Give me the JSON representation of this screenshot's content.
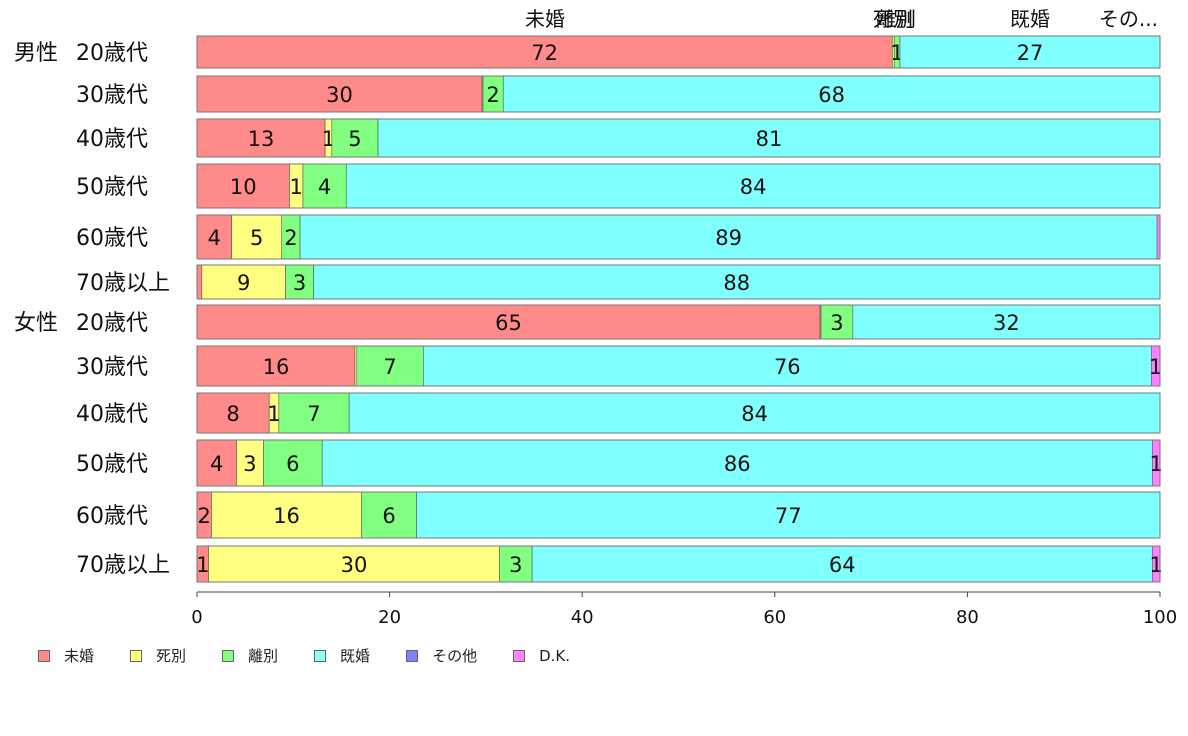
{
  "chart_data": {
    "type": "bar",
    "orientation": "horizontal",
    "stacked": true,
    "categories": [
      {
        "group": "男性",
        "label": "20歳代"
      },
      {
        "group": "",
        "label": "30歳代"
      },
      {
        "group": "",
        "label": "40歳代"
      },
      {
        "group": "",
        "label": "50歳代"
      },
      {
        "group": "",
        "label": "60歳代"
      },
      {
        "group": "",
        "label": "70歳以上"
      },
      {
        "group": "女性",
        "label": "20歳代"
      },
      {
        "group": "",
        "label": "30歳代"
      },
      {
        "group": "",
        "label": "40歳代"
      },
      {
        "group": "",
        "label": "50歳代"
      },
      {
        "group": "",
        "label": "60歳代"
      },
      {
        "group": "",
        "label": "70歳以上"
      }
    ],
    "series": [
      {
        "name": "未婚",
        "color": "#ff8a8a",
        "values": [
          72.2,
          29.6,
          13.3,
          9.6,
          3.6,
          0.5,
          64.7,
          16.4,
          7.5,
          4.1,
          1.5,
          1.2
        ],
        "labels": [
          "72",
          "30",
          "13",
          "10",
          "4",
          "",
          "65",
          "16",
          "8",
          "4",
          "2",
          "1"
        ]
      },
      {
        "name": "死別",
        "color": "#ffff80",
        "values": [
          0.2,
          0.1,
          0.7,
          1.4,
          5.2,
          8.7,
          0.1,
          0.2,
          1.0,
          2.8,
          15.6,
          30.2
        ],
        "labels": [
          "",
          "",
          "1",
          "1",
          "5",
          "9",
          "",
          "",
          "1",
          "3",
          "16",
          "30"
        ]
      },
      {
        "name": "離別",
        "color": "#80ff80",
        "values": [
          0.6,
          2.1,
          4.8,
          4.5,
          1.9,
          2.9,
          3.3,
          6.9,
          7.3,
          6.1,
          5.7,
          3.4
        ],
        "labels": [
          "1",
          "2",
          "5",
          "4",
          "2",
          "3",
          "3",
          "7",
          "7",
          "6",
          "6",
          "3"
        ]
      },
      {
        "name": "既婚",
        "color": "#80ffff",
        "values": [
          27.0,
          68.2,
          81.2,
          84.5,
          89.0,
          87.9,
          31.9,
          75.6,
          84.2,
          86.2,
          77.2,
          64.4
        ],
        "labels": [
          "27",
          "68",
          "81",
          "84",
          "89",
          "88",
          "32",
          "76",
          "84",
          "86",
          "77",
          "64"
        ]
      },
      {
        "name": "その他",
        "color": "#8080ff",
        "values": [
          0,
          0,
          0,
          0,
          0,
          0,
          0,
          0,
          0,
          0,
          0,
          0
        ],
        "labels": [
          "",
          "",
          "",
          "",
          "",
          "",
          "",
          "",
          "",
          "",
          "",
          ""
        ]
      },
      {
        "name": "D.K.",
        "color": "#ff80ff",
        "values": [
          0,
          0,
          0,
          0,
          0.3,
          0,
          0,
          0.9,
          0,
          0.8,
          0,
          0.8
        ],
        "labels": [
          "",
          "",
          "",
          "",
          "",
          "",
          "",
          "1",
          "",
          "1",
          "",
          "1"
        ]
      }
    ],
    "top_labels": [
      "未婚",
      "死別",
      "離別",
      "既婚",
      "その..."
    ],
    "xlim": [
      0,
      100
    ],
    "xticks": [
      "0",
      "20",
      "40",
      "60",
      "80",
      "100"
    ],
    "legend_position": "bottom-left",
    "grid": false
  }
}
